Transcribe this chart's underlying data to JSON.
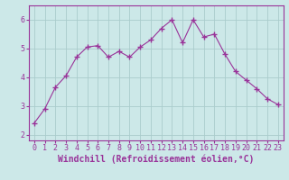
{
  "x": [
    0,
    1,
    2,
    3,
    4,
    5,
    6,
    7,
    8,
    9,
    10,
    11,
    12,
    13,
    14,
    15,
    16,
    17,
    18,
    19,
    20,
    21,
    22,
    23
  ],
  "y": [
    2.4,
    2.9,
    3.65,
    4.05,
    4.7,
    5.05,
    5.1,
    4.7,
    4.9,
    4.7,
    5.05,
    5.3,
    5.7,
    6.0,
    5.2,
    6.0,
    5.4,
    5.5,
    4.8,
    4.2,
    3.9,
    3.6,
    3.25,
    3.05
  ],
  "line_color": "#993399",
  "marker": "+",
  "marker_size": 4,
  "marker_linewidth": 1.0,
  "bg_color": "#cce8e8",
  "grid_color": "#aacccc",
  "xlabel": "Windchill (Refroidissement éolien,°C)",
  "xlabel_fontsize": 7,
  "tick_fontsize": 6,
  "ylim": [
    1.8,
    6.5
  ],
  "yticks": [
    2,
    3,
    4,
    5,
    6
  ],
  "xlim": [
    -0.5,
    23.5
  ]
}
